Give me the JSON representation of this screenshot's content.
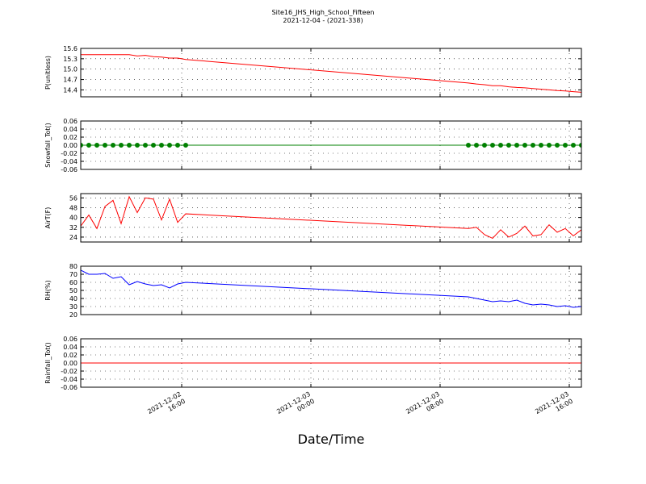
{
  "figure": {
    "title": "Site16_JHS_High_School_Fifteen",
    "subtitle": "2021-12-04 - (2021-338)",
    "xlabel": "Date/Time"
  },
  "chart_data": [
    {
      "type": "line",
      "ylabel": "P(unitless)",
      "x": [
        "2021-12-02 09:45",
        "2021-12-02 10:15",
        "2021-12-02 10:45",
        "2021-12-02 11:15",
        "2021-12-02 11:45",
        "2021-12-02 12:15",
        "2021-12-02 12:45",
        "2021-12-02 13:15",
        "2021-12-02 13:45",
        "2021-12-02 14:15",
        "2021-12-02 14:45",
        "2021-12-02 15:15",
        "2021-12-02 15:45",
        "2021-12-02 16:15",
        "2021-12-03 09:45",
        "2021-12-03 10:15",
        "2021-12-03 10:45",
        "2021-12-03 11:15",
        "2021-12-03 11:45",
        "2021-12-03 12:15",
        "2021-12-03 12:45",
        "2021-12-03 13:15",
        "2021-12-03 13:45",
        "2021-12-03 14:15",
        "2021-12-03 14:45",
        "2021-12-03 15:15",
        "2021-12-03 15:45",
        "2021-12-03 16:15",
        "2021-12-03 16:45"
      ],
      "series": [
        {
          "color": "#ff0000",
          "values": [
            15.42,
            15.42,
            15.42,
            15.42,
            15.42,
            15.42,
            15.42,
            15.38,
            15.4,
            15.36,
            15.35,
            15.32,
            15.32,
            15.28,
            14.6,
            14.57,
            14.55,
            14.52,
            14.52,
            14.49,
            14.47,
            14.46,
            14.44,
            14.42,
            14.4,
            14.38,
            14.37,
            14.35,
            14.33
          ]
        }
      ],
      "xlim": [
        "2021-12-02 09:45",
        "2021-12-03 16:45"
      ],
      "xticks": [
        {
          "value": "2021-12-02 16:00",
          "label": "2021-12-02\n16:00"
        },
        {
          "value": "2021-12-03 00:00",
          "label": "2021-12-03\n00:00"
        },
        {
          "value": "2021-12-03 08:00",
          "label": "2021-12-03\n08:00"
        },
        {
          "value": "2021-12-03 16:00",
          "label": "2021-12-03\n16:00"
        }
      ],
      "ylim": [
        14.2,
        15.6
      ],
      "yticks": [
        14.4,
        14.7,
        {
          "value": 15,
          "label": "15.0"
        },
        15.3,
        15.6
      ],
      "grid": true
    },
    {
      "type": "line",
      "ylabel": "Snowfall_Tot()",
      "marker": true,
      "x": [
        "2021-12-02 09:45",
        "2021-12-02 10:15",
        "2021-12-02 10:45",
        "2021-12-02 11:15",
        "2021-12-02 11:45",
        "2021-12-02 12:15",
        "2021-12-02 12:45",
        "2021-12-02 13:15",
        "2021-12-02 13:45",
        "2021-12-02 14:15",
        "2021-12-02 14:45",
        "2021-12-02 15:15",
        "2021-12-02 15:45",
        "2021-12-02 16:15",
        "2021-12-03 09:45",
        "2021-12-03 10:15",
        "2021-12-03 10:45",
        "2021-12-03 11:15",
        "2021-12-03 11:45",
        "2021-12-03 12:15",
        "2021-12-03 12:45",
        "2021-12-03 13:15",
        "2021-12-03 13:45",
        "2021-12-03 14:15",
        "2021-12-03 14:45",
        "2021-12-03 15:15",
        "2021-12-03 15:45",
        "2021-12-03 16:15",
        "2021-12-03 16:45"
      ],
      "series": [
        {
          "color": "#008000",
          "values": [
            0,
            0,
            0,
            0,
            0,
            0,
            0,
            0,
            0,
            0,
            0,
            0,
            0,
            0,
            0,
            0,
            0,
            0,
            0,
            0,
            0,
            0,
            0,
            0,
            0,
            0,
            0,
            0,
            0
          ]
        }
      ],
      "xlim": [
        "2021-12-02 09:45",
        "2021-12-03 16:45"
      ],
      "xticks": [
        {
          "value": "2021-12-02 16:00",
          "label": "2021-12-02\n16:00"
        },
        {
          "value": "2021-12-03 00:00",
          "label": "2021-12-03\n00:00"
        },
        {
          "value": "2021-12-03 08:00",
          "label": "2021-12-03\n08:00"
        },
        {
          "value": "2021-12-03 16:00",
          "label": "2021-12-03\n16:00"
        }
      ],
      "ylim": [
        -0.06,
        0.06
      ],
      "yticks": [
        -0.06,
        -0.04,
        -0.02,
        {
          "value": 0,
          "label": "0.00"
        },
        0.02,
        0.04,
        0.06
      ],
      "grid": true
    },
    {
      "type": "line",
      "ylabel": "AirT(F)",
      "x": [
        "2021-12-02 09:45",
        "2021-12-02 10:15",
        "2021-12-02 10:45",
        "2021-12-02 11:15",
        "2021-12-02 11:45",
        "2021-12-02 12:15",
        "2021-12-02 12:45",
        "2021-12-02 13:15",
        "2021-12-02 13:45",
        "2021-12-02 14:15",
        "2021-12-02 14:45",
        "2021-12-02 15:15",
        "2021-12-02 15:45",
        "2021-12-02 16:15",
        "2021-12-03 09:45",
        "2021-12-03 10:15",
        "2021-12-03 10:45",
        "2021-12-03 11:15",
        "2021-12-03 11:45",
        "2021-12-03 12:15",
        "2021-12-03 12:45",
        "2021-12-03 13:15",
        "2021-12-03 13:45",
        "2021-12-03 14:15",
        "2021-12-03 14:45",
        "2021-12-03 15:15",
        "2021-12-03 15:45",
        "2021-12-03 16:15",
        "2021-12-03 16:45"
      ],
      "series": [
        {
          "color": "#ff0000",
          "values": [
            33,
            42,
            31,
            49,
            54,
            35,
            57,
            44,
            56,
            55,
            38,
            55,
            36,
            43,
            31,
            32,
            26,
            23,
            30,
            24,
            27,
            33,
            25,
            26,
            34,
            28,
            31,
            25,
            30
          ]
        }
      ],
      "xlim": [
        "2021-12-02 09:45",
        "2021-12-03 16:45"
      ],
      "xticks": [
        {
          "value": "2021-12-02 16:00",
          "label": "2021-12-02\n16:00"
        },
        {
          "value": "2021-12-03 00:00",
          "label": "2021-12-03\n00:00"
        },
        {
          "value": "2021-12-03 08:00",
          "label": "2021-12-03\n08:00"
        },
        {
          "value": "2021-12-03 16:00",
          "label": "2021-12-03\n16:00"
        }
      ],
      "ylim": [
        20,
        59.5
      ],
      "yticks": [
        24,
        32,
        40,
        48,
        56
      ],
      "grid": true
    },
    {
      "type": "line",
      "ylabel": "RH(%)",
      "x": [
        "2021-12-02 09:45",
        "2021-12-02 10:15",
        "2021-12-02 10:45",
        "2021-12-02 11:15",
        "2021-12-02 11:45",
        "2021-12-02 12:15",
        "2021-12-02 12:45",
        "2021-12-02 13:15",
        "2021-12-02 13:45",
        "2021-12-02 14:15",
        "2021-12-02 14:45",
        "2021-12-02 15:15",
        "2021-12-02 15:45",
        "2021-12-02 16:15",
        "2021-12-03 09:45",
        "2021-12-03 10:15",
        "2021-12-03 10:45",
        "2021-12-03 11:15",
        "2021-12-03 11:45",
        "2021-12-03 12:15",
        "2021-12-03 12:45",
        "2021-12-03 13:15",
        "2021-12-03 13:45",
        "2021-12-03 14:15",
        "2021-12-03 14:45",
        "2021-12-03 15:15",
        "2021-12-03 15:45",
        "2021-12-03 16:15",
        "2021-12-03 16:45"
      ],
      "series": [
        {
          "color": "#0000ff",
          "values": [
            75,
            70,
            70,
            71,
            65,
            67,
            57,
            61,
            58,
            56,
            57,
            53,
            58,
            60,
            42,
            40,
            38,
            36,
            37,
            36,
            38,
            34,
            32,
            33,
            32,
            30,
            31,
            29,
            30
          ]
        }
      ],
      "xlim": [
        "2021-12-02 09:45",
        "2021-12-03 16:45"
      ],
      "xticks": [
        {
          "value": "2021-12-02 16:00",
          "label": "2021-12-02\n16:00"
        },
        {
          "value": "2021-12-03 00:00",
          "label": "2021-12-03\n00:00"
        },
        {
          "value": "2021-12-03 08:00",
          "label": "2021-12-03\n08:00"
        },
        {
          "value": "2021-12-03 16:00",
          "label": "2021-12-03\n16:00"
        }
      ],
      "ylim": [
        20,
        80
      ],
      "yticks": [
        20,
        30,
        40,
        50,
        60,
        70,
        80
      ],
      "grid": true
    },
    {
      "type": "line",
      "ylabel": "Rainfall_Tot()",
      "x": [
        "2021-12-02 09:45",
        "2021-12-02 10:15",
        "2021-12-02 10:45",
        "2021-12-02 11:15",
        "2021-12-02 11:45",
        "2021-12-02 12:15",
        "2021-12-02 12:45",
        "2021-12-02 13:15",
        "2021-12-02 13:45",
        "2021-12-02 14:15",
        "2021-12-02 14:45",
        "2021-12-02 15:15",
        "2021-12-02 15:45",
        "2021-12-02 16:15",
        "2021-12-03 09:45",
        "2021-12-03 10:15",
        "2021-12-03 10:45",
        "2021-12-03 11:15",
        "2021-12-03 11:45",
        "2021-12-03 12:15",
        "2021-12-03 12:45",
        "2021-12-03 13:15",
        "2021-12-03 13:45",
        "2021-12-03 14:15",
        "2021-12-03 14:45",
        "2021-12-03 15:15",
        "2021-12-03 15:45",
        "2021-12-03 16:15",
        "2021-12-03 16:45"
      ],
      "series": [
        {
          "color": "#ff0000",
          "values": [
            0,
            0,
            0,
            0,
            0,
            0,
            0,
            0,
            0,
            0,
            0,
            0,
            0,
            0,
            0,
            0,
            0,
            0,
            0,
            0,
            0,
            0,
            0,
            0,
            0,
            0,
            0,
            0,
            0
          ]
        }
      ],
      "xlim": [
        "2021-12-02 09:45",
        "2021-12-03 16:45"
      ],
      "xticks": [
        {
          "value": "2021-12-02 16:00",
          "label": "2021-12-02\n16:00"
        },
        {
          "value": "2021-12-03 00:00",
          "label": "2021-12-03\n00:00"
        },
        {
          "value": "2021-12-03 08:00",
          "label": "2021-12-03\n08:00"
        },
        {
          "value": "2021-12-03 16:00",
          "label": "2021-12-03\n16:00"
        }
      ],
      "ylim": [
        -0.06,
        0.06
      ],
      "yticks": [
        -0.06,
        -0.04,
        -0.02,
        {
          "value": 0,
          "label": "0.00"
        },
        0.02,
        0.04,
        0.06
      ],
      "grid": true,
      "show_xticklabels": true
    }
  ]
}
